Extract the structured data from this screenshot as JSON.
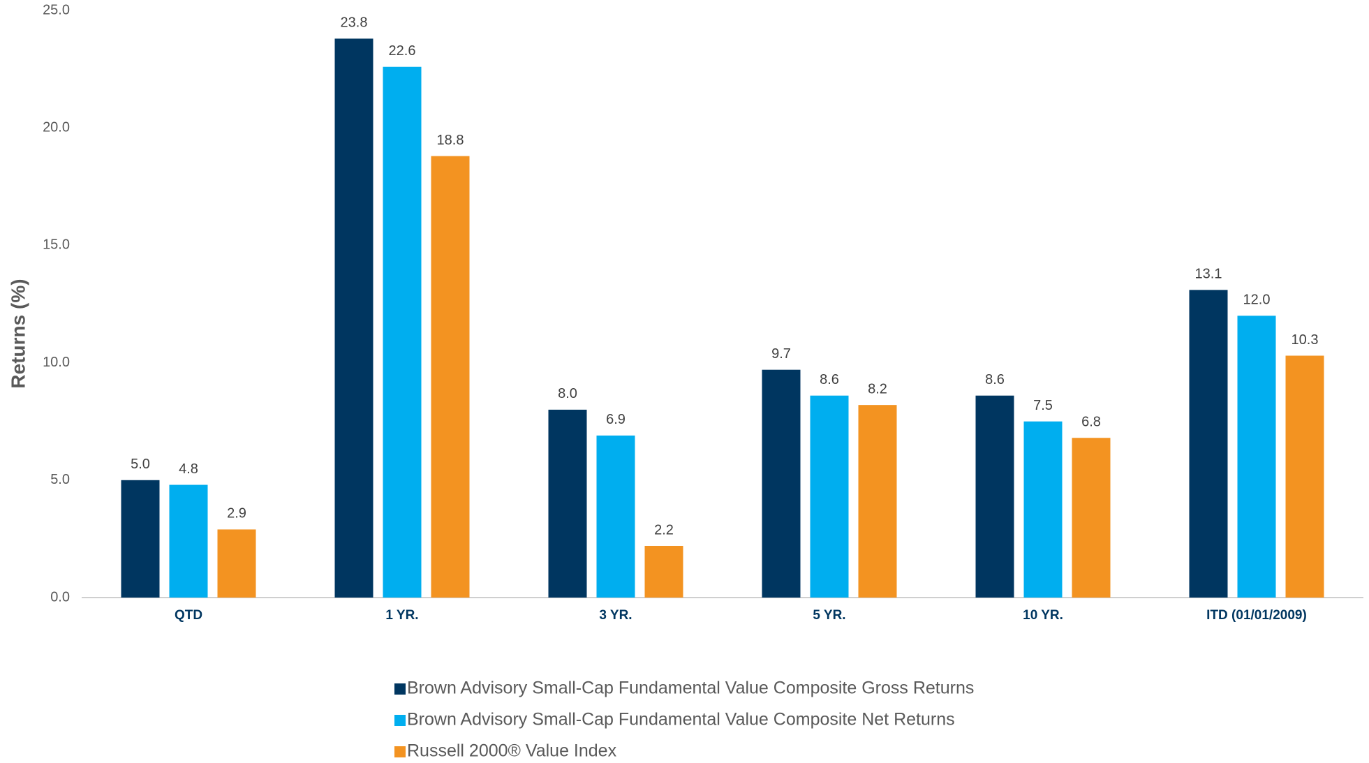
{
  "chart_data": {
    "type": "bar",
    "y_label": "Returns (%)",
    "categories": [
      "QTD",
      "1 YR.",
      "3 YR.",
      "5 YR.",
      "10 YR.",
      "ITD (01/01/2009)"
    ],
    "series": [
      {
        "name": "Brown Advisory Small-Cap Fundamental Value Composite Gross Returns",
        "color": "#003660",
        "values": [
          5,
          23.8,
          8,
          9.7,
          8.6,
          13.1
        ],
        "value_labels": [
          "5.0",
          "23.8",
          "8.0",
          "9.7",
          "8.6",
          "13.1"
        ]
      },
      {
        "name": "Brown Advisory Small-Cap Fundamental Value Composite Net Returns",
        "color": "#00aeef",
        "values": [
          4.8,
          22.6,
          6.9,
          8.6,
          7.5,
          12
        ],
        "value_labels": [
          "4.8",
          "22.6",
          "6.9",
          "8.6",
          "7.5",
          "12.0"
        ]
      },
      {
        "name": "Russell 2000® Value Index",
        "color": "#f39321",
        "values": [
          2.9,
          18.8,
          2.2,
          8.2,
          6.8,
          10.3
        ],
        "value_labels": [
          "2.9",
          "18.8",
          "2.2",
          "8.2",
          "6.8",
          "10.3"
        ]
      }
    ],
    "ylim": [
      0,
      25
    ],
    "yticks": [
      {
        "value": 0,
        "label": "0.0"
      },
      {
        "value": 5,
        "label": "5.0"
      },
      {
        "value": 10,
        "label": "10.0"
      },
      {
        "value": 15,
        "label": "15.0"
      },
      {
        "value": 20,
        "label": "20.0"
      },
      {
        "value": 25,
        "label": "25.0"
      }
    ],
    "legend": "bottom"
  }
}
